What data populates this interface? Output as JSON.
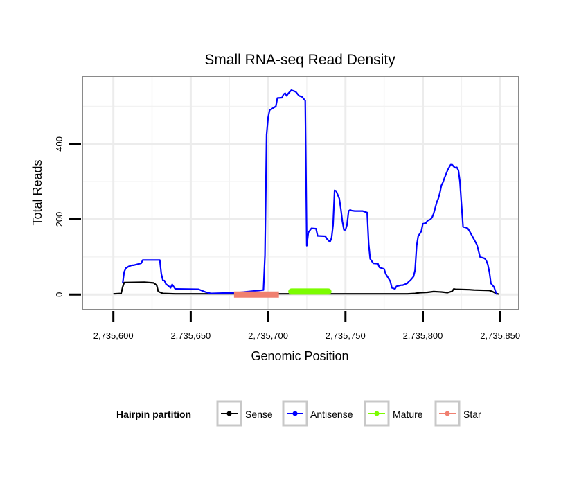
{
  "chart_data": {
    "type": "line",
    "title": "Small RNA-seq Read Density",
    "xlabel": "Genomic Position",
    "ylabel": "Total Reads",
    "xlim": [
      2735580,
      2735862
    ],
    "ylim": [
      -40,
      580
    ],
    "x_ticks": [
      2735600,
      2735650,
      2735700,
      2735750,
      2735800,
      2735850
    ],
    "x_tick_labels": [
      "2,735,600",
      "2,735,650",
      "2,735,700",
      "2,735,750",
      "2,735,800",
      "2,735,850"
    ],
    "y_ticks": [
      0,
      200,
      400
    ],
    "y_tick_labels": [
      "0",
      "200",
      "400"
    ],
    "grid": true,
    "legend": {
      "title": "Hairpin partition",
      "placement": "bottom",
      "entries": [
        {
          "name": "Sense",
          "color": "#000000"
        },
        {
          "name": "Antisense",
          "color": "#0000ff"
        },
        {
          "name": "Mature",
          "color": "#7cfc00"
        },
        {
          "name": "Star",
          "color": "#f08070"
        }
      ]
    },
    "series": [
      {
        "name": "Sense",
        "color": "#000000",
        "x": [
          2735600,
          2735605,
          2735606,
          2735607,
          2735620,
          2735626,
          2735628,
          2735629,
          2735632,
          2735640,
          2735690,
          2735715,
          2735790,
          2735795,
          2735798,
          2735803,
          2735807,
          2735812,
          2735816,
          2735819,
          2735820,
          2735821,
          2735830,
          2735833,
          2735843,
          2735845,
          2735847,
          2735849
        ],
        "values": [
          2,
          3,
          20,
          32,
          33,
          31,
          25,
          8,
          3,
          2,
          2,
          2,
          2,
          3,
          5,
          6,
          8,
          7,
          5,
          9,
          15,
          14,
          13,
          12,
          11,
          8,
          4,
          1
        ]
      },
      {
        "name": "Antisense",
        "color": "#0000ff",
        "x": [
          2735606,
          2735607,
          2735608,
          2735610,
          2735612,
          2735613,
          2735616,
          2735618,
          2735619,
          2735630,
          2735631,
          2735632,
          2735633,
          2735634,
          2735635,
          2735637,
          2735638,
          2735640,
          2735655,
          2735660,
          2735663,
          2735680,
          2735697,
          2735698,
          2735699,
          2735700,
          2735701,
          2735702,
          2735703,
          2735705,
          2735706,
          2735709,
          2735710,
          2735711,
          2735712,
          2735713,
          2735715,
          2735717,
          2735718,
          2735720,
          2735722,
          2735724,
          2735725,
          2735726,
          2735728,
          2735731,
          2735732,
          2735737,
          2735738,
          2735740,
          2735741,
          2735742,
          2735743,
          2735744,
          2735746,
          2735747,
          2735748,
          2735749,
          2735750,
          2735751,
          2735752,
          2735753,
          2735754,
          2735756,
          2735761,
          2735764,
          2735765,
          2735766,
          2735768,
          2735771,
          2735772,
          2735775,
          2735776,
          2735778,
          2735779,
          2735780,
          2735782,
          2735783,
          2735786,
          2735787,
          2735790,
          2735791,
          2735792,
          2735794,
          2735795,
          2735796,
          2735797,
          2735799,
          2735800,
          2735802,
          2735803,
          2735804,
          2735805,
          2735806,
          2735807,
          2735809,
          2735810,
          2735811,
          2735812,
          2735813,
          2735814,
          2735816,
          2735817,
          2735818,
          2735819,
          2735820,
          2735821,
          2735822,
          2735823,
          2735824,
          2735825,
          2735826,
          2735828,
          2735829,
          2735830,
          2735835,
          2735837,
          2735840,
          2735841,
          2735842,
          2735843,
          2735844,
          2735845,
          2735846,
          2735847,
          2735848
        ],
        "values": [
          30,
          60,
          70,
          75,
          78,
          78,
          81,
          83,
          92,
          92,
          55,
          38,
          37,
          28,
          25,
          18,
          27,
          15,
          14,
          6,
          3,
          5,
          12,
          105,
          425,
          470,
          490,
          492,
          495,
          500,
          522,
          523,
          532,
          535,
          528,
          534,
          543,
          540,
          538,
          528,
          525,
          515,
          130,
          165,
          176,
          175,
          156,
          155,
          148,
          140,
          150,
          185,
          277,
          275,
          255,
          228,
          195,
          172,
          172,
          185,
          222,
          225,
          223,
          222,
          222,
          218,
          135,
          95,
          83,
          82,
          72,
          68,
          55,
          42,
          35,
          18,
          15,
          22,
          25,
          25,
          30,
          35,
          38,
          48,
          65,
          130,
          155,
          168,
          188,
          190,
          196,
          198,
          200,
          205,
          215,
          245,
          255,
          270,
          290,
          298,
          310,
          330,
          338,
          345,
          345,
          340,
          337,
          338,
          330,
          300,
          240,
          180,
          178,
          176,
          170,
          132,
          100,
          96,
          90,
          80,
          60,
          30,
          25,
          20,
          8,
          0
        ]
      },
      {
        "name": "Mature",
        "color": "#7cfc00",
        "x": [
          2735715,
          2735739
        ],
        "values": [
          8,
          8
        ]
      },
      {
        "name": "Star",
        "color": "#f08070",
        "x": [
          2735678,
          2735707
        ],
        "values": [
          0,
          0
        ]
      }
    ]
  }
}
